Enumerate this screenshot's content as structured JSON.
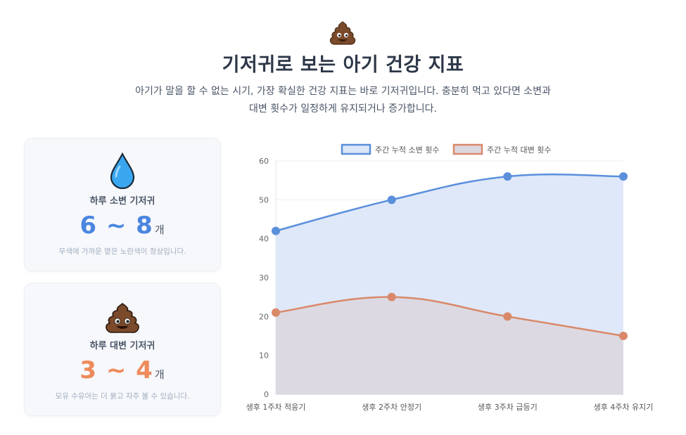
{
  "header": {
    "icon": "poop-icon",
    "title": "기저귀로 보는 아기 건강 지표",
    "subtitle_line1": "아기가 말을 할 수 없는 시기, 가장 확실한 건강 지표는 바로 기저귀입니다. 충분히 먹고 있다면 소변과",
    "subtitle_line2": "대변 횟수가 일정하게 유지되거나 증가합니다."
  },
  "cards": [
    {
      "icon": "water-drop-icon",
      "label": "하루 소변 기저귀",
      "value": "6 ~ 8",
      "unit": "개",
      "note": "무색에 가까운 옅은 노란색이 정상입니다.",
      "accent": "#4a86e0"
    },
    {
      "icon": "poop-icon",
      "label": "하루 대변 기저귀",
      "value": "3 ~ 4",
      "unit": "개",
      "note": "모유 수유아는 더 묽고 자주 볼 수 있습니다.",
      "accent": "#ee8b5b"
    }
  ],
  "chart_data": {
    "type": "area",
    "categories": [
      "생후 1주차 적응기",
      "생후 2주차 안정기",
      "생후 3주차 급등기",
      "생후 4주차 유지기"
    ],
    "series": [
      {
        "name": "주간 누적 소변 횟수",
        "values": [
          42,
          50,
          56,
          56
        ],
        "color": "#5b8fdc",
        "fill": "#dbe6f8"
      },
      {
        "name": "주간 누적 대변 횟수",
        "values": [
          21,
          25,
          20,
          15
        ],
        "color": "#d9896a",
        "fill": "#dcd6de"
      }
    ],
    "ylim": [
      0,
      60
    ],
    "yticks": [
      0,
      10,
      20,
      30,
      40,
      50,
      60
    ],
    "grid": true,
    "legend": "top-center"
  }
}
